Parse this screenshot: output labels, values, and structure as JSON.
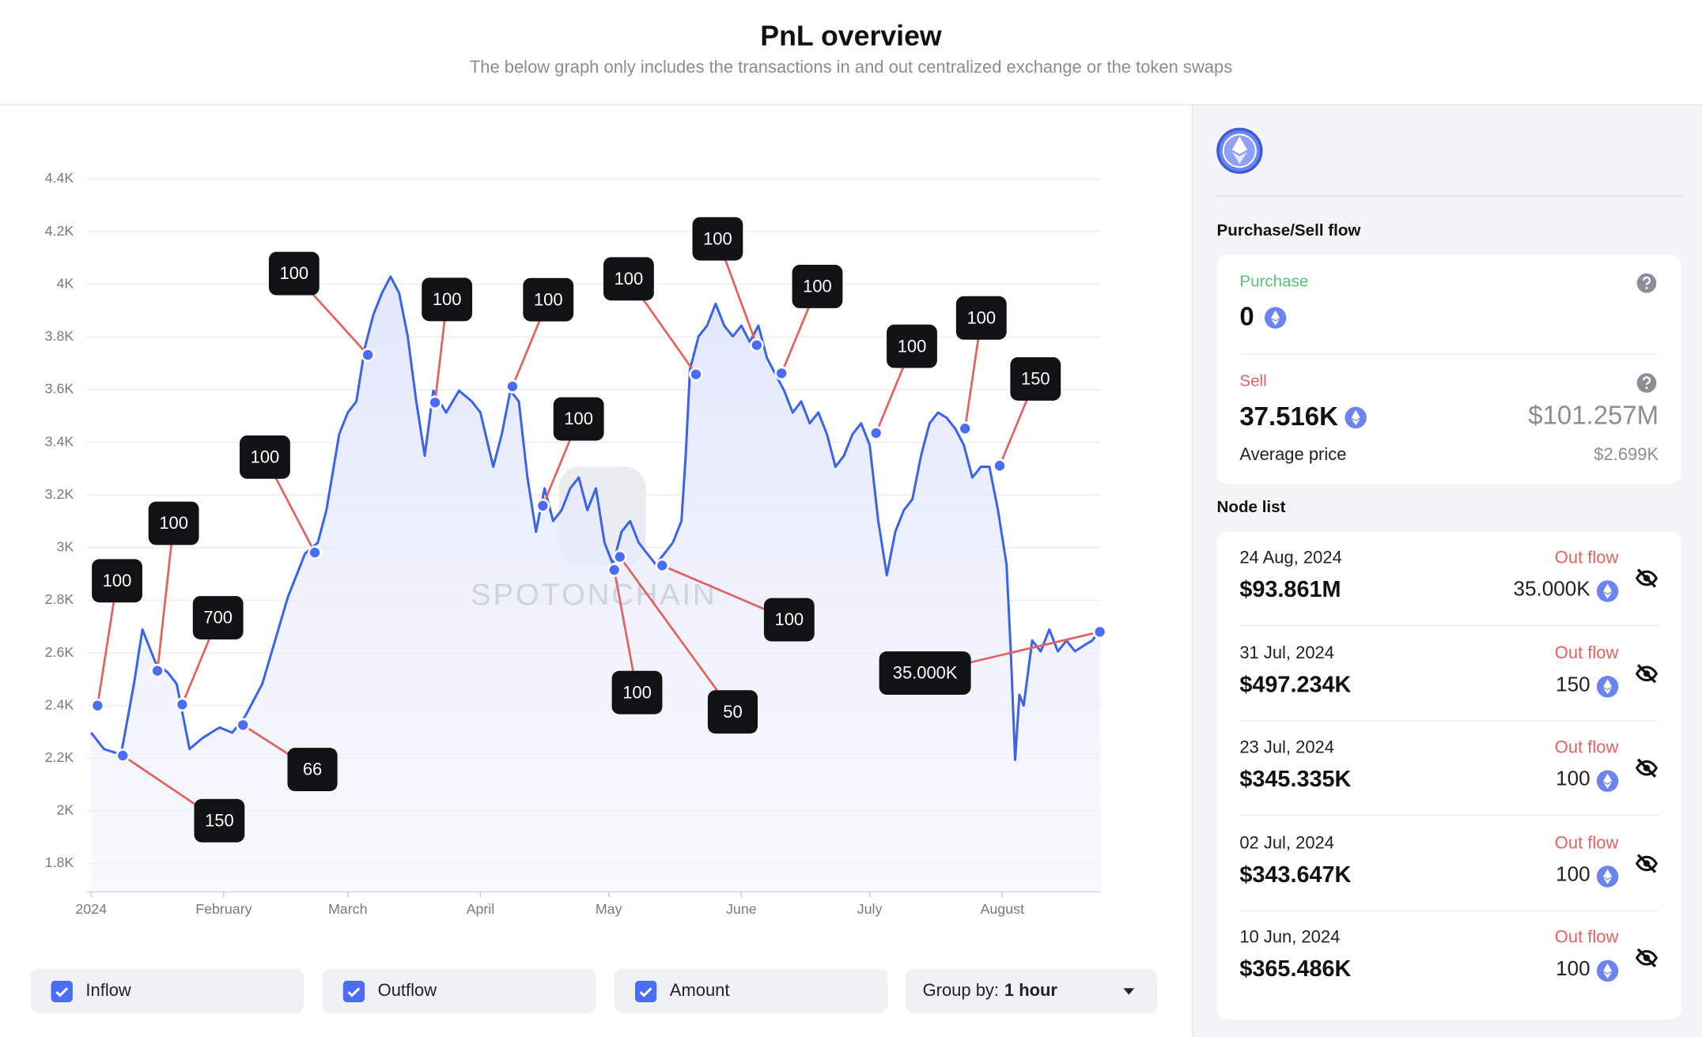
{
  "header": {
    "title": "PnL overview",
    "subtitle": "The below graph only includes the transactions in and out centralized exchange or the token swaps"
  },
  "chart_data": {
    "type": "line",
    "color": "#3d63eb",
    "grid": true,
    "watermark": "SPOTONCHAIN",
    "xlim": [
      -1,
      236
    ],
    "xticks": [
      {
        "value": 0,
        "label": "2024"
      },
      {
        "value": 31,
        "label": "February"
      },
      {
        "value": 60,
        "label": "March"
      },
      {
        "value": 91,
        "label": "April"
      },
      {
        "value": 121,
        "label": "May"
      },
      {
        "value": 152,
        "label": "June"
      },
      {
        "value": 182,
        "label": "July"
      },
      {
        "value": 213,
        "label": "August"
      }
    ],
    "ylim": [
      1693,
      4400
    ],
    "yticks": [
      {
        "value": 1800,
        "label": "1.8K"
      },
      {
        "value": 2000,
        "label": "2K"
      },
      {
        "value": 2200,
        "label": "2.2K"
      },
      {
        "value": 2400,
        "label": "2.4K"
      },
      {
        "value": 2600,
        "label": "2.6K"
      },
      {
        "value": 2800,
        "label": "2.8K"
      },
      {
        "value": 3000,
        "label": "3K"
      },
      {
        "value": 3200,
        "label": "3.2K"
      },
      {
        "value": 3400,
        "label": "3.4K"
      },
      {
        "value": 3600,
        "label": "3.6K"
      },
      {
        "value": 3800,
        "label": "3.8K"
      },
      {
        "value": 4000,
        "label": "4K"
      },
      {
        "value": 4200,
        "label": "4.2K"
      },
      {
        "value": 4400,
        "label": "4.4K"
      }
    ],
    "x": [
      0,
      3,
      7,
      10,
      12,
      15,
      18,
      20,
      23,
      26,
      30,
      33,
      36,
      40,
      43,
      46,
      50,
      53,
      55,
      58,
      60,
      62,
      64,
      66,
      68,
      70,
      72,
      74,
      76,
      78,
      80,
      83,
      86,
      89,
      91,
      94,
      96,
      98,
      100,
      102,
      104,
      106,
      108,
      110,
      112,
      114,
      116,
      118,
      120,
      122,
      124,
      126,
      128,
      130,
      132,
      134,
      136,
      138,
      139,
      140,
      142,
      144,
      146,
      148,
      150,
      152,
      154,
      156,
      158,
      160,
      162,
      164,
      166,
      168,
      170,
      172,
      174,
      176,
      178,
      180,
      182,
      184,
      186,
      188,
      190,
      192,
      194,
      196,
      198,
      200,
      202,
      204,
      206,
      208,
      210,
      212,
      214,
      215,
      216,
      217,
      218,
      220,
      222,
      224,
      226,
      228,
      230,
      232,
      234,
      236
    ],
    "values": [
      2297,
      2235,
      2214,
      2482,
      2689,
      2565,
      2524,
      2482,
      2235,
      2276,
      2317,
      2297,
      2359,
      2482,
      2647,
      2812,
      2977,
      3019,
      3142,
      3431,
      3513,
      3555,
      3761,
      3885,
      3967,
      4029,
      3967,
      3802,
      3555,
      3349,
      3596,
      3513,
      3596,
      3555,
      3513,
      3307,
      3431,
      3596,
      3555,
      3266,
      3060,
      3225,
      3101,
      3142,
      3225,
      3266,
      3142,
      3225,
      3019,
      2936,
      3060,
      3101,
      3019,
      2977,
      2936,
      2977,
      3019,
      3101,
      3349,
      3678,
      3802,
      3843,
      3926,
      3843,
      3802,
      3843,
      3781,
      3843,
      3720,
      3658,
      3596,
      3513,
      3555,
      3472,
      3513,
      3431,
      3307,
      3349,
      3431,
      3472,
      3390,
      3101,
      2895,
      3060,
      3142,
      3184,
      3349,
      3472,
      3513,
      3493,
      3452,
      3390,
      3266,
      3307,
      3307,
      3142,
      2936,
      2606,
      2194,
      2441,
      2400,
      2647,
      2606,
      2689,
      2606,
      2647,
      2606,
      2627,
      2647,
      2689
    ],
    "nodes": {
      "x": [
        1.5,
        7.4,
        15.5,
        21.3,
        35.5,
        52.3,
        64.7,
        80.4,
        98.5,
        105.6,
        122.3,
        123.6,
        133.5,
        141.4,
        155.6,
        161.4,
        183.5,
        204.3,
        212.4,
        235.8
      ],
      "values": [
        2400,
        2210,
        2532,
        2404,
        2326,
        2981,
        3732,
        3551,
        3612,
        3159,
        2915,
        2965,
        2932,
        3658,
        3769,
        3662,
        3435,
        3452,
        3311,
        2680
      ],
      "labels": [
        "100",
        "150",
        "100",
        "700",
        "66",
        "100",
        "100",
        "100",
        "100",
        "100",
        "100",
        "50",
        "100",
        "100",
        "100",
        "100",
        "100",
        "100",
        "150",
        "35.000K"
      ]
    }
  },
  "controls": [
    "Inflow",
    "Outflow",
    "Amount"
  ],
  "group_by": {
    "label": "Group by:",
    "value": "1 hour"
  },
  "panel": {
    "flow_title": "Purchase/Sell flow",
    "purchase": {
      "label": "Purchase",
      "amount": "0"
    },
    "sell": {
      "label": "Sell",
      "amount": "37.516K",
      "usd": "$101.257M",
      "avg_label": "Average price",
      "avg_price": "$2.699K"
    },
    "node_title": "Node list",
    "nodes": [
      {
        "date": "24 Aug, 2024",
        "value": "$93.861M",
        "flow": "Out flow",
        "amount": "35.000K"
      },
      {
        "date": "31 Jul, 2024",
        "value": "$497.234K",
        "flow": "Out flow",
        "amount": "150"
      },
      {
        "date": "23 Jul, 2024",
        "value": "$345.335K",
        "flow": "Out flow",
        "amount": "100"
      },
      {
        "date": "02 Jul, 2024",
        "value": "$343.647K",
        "flow": "Out flow",
        "amount": "100"
      },
      {
        "date": "10 Jun, 2024",
        "value": "$365.486K",
        "flow": "Out flow",
        "amount": "100"
      }
    ]
  }
}
